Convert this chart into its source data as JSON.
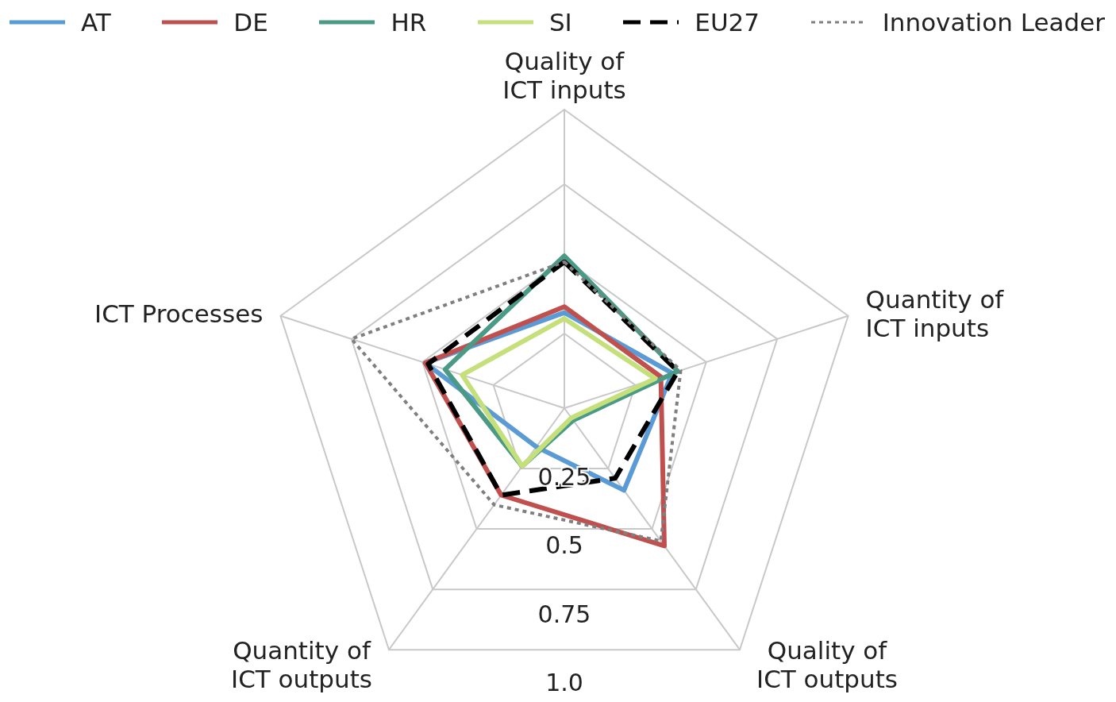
{
  "chart_data": {
    "type": "radar",
    "categories": [
      "Quality of\nICT inputs",
      "Quantity of\nICT inputs",
      "Quality of\nICT outputs",
      "Quantity of\nICT outputs",
      "ICT Processes"
    ],
    "series": [
      {
        "name": "AT",
        "color": "#5b9bd5",
        "values": [
          0.32,
          0.38,
          0.34,
          0.16,
          0.49
        ]
      },
      {
        "name": "DE",
        "color": "#c0504d",
        "values": [
          0.34,
          0.34,
          0.57,
          0.36,
          0.49
        ]
      },
      {
        "name": "HR",
        "color": "#4a9a86",
        "values": [
          0.51,
          0.4,
          0.05,
          0.24,
          0.42
        ]
      },
      {
        "name": "SI",
        "color": "#c5e07a",
        "values": [
          0.3,
          0.32,
          0.04,
          0.24,
          0.36
        ]
      },
      {
        "name": "EU27",
        "color": "#000000",
        "line_style": "dashed",
        "values": [
          0.49,
          0.4,
          0.29,
          0.36,
          0.48
        ]
      },
      {
        "name": "Innovation Leader",
        "color": "#7f7f7f",
        "line_style": "dotted",
        "values": [
          0.49,
          0.41,
          0.55,
          0.4,
          0.75
        ]
      }
    ],
    "ylim": [
      0,
      1
    ],
    "yticks": [
      0.25,
      0.5,
      0.75,
      {
        "value": 1,
        "label": "1.0"
      }
    ],
    "grid": true,
    "legend": "top",
    "marker": "none",
    "line_style": "solid"
  }
}
